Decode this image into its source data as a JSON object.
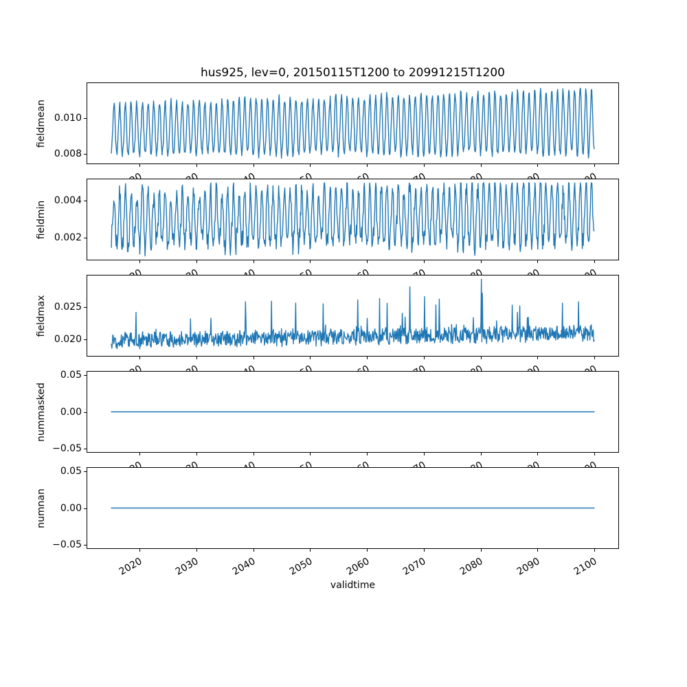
{
  "figure": {
    "background": "#ffffff",
    "text_color": "#000000",
    "spine_color": "#000000"
  },
  "chart_data": {
    "type": "line",
    "title": "hus925, lev=0, 20150115T1200 to 20991215T1200",
    "xlabel": "validtime",
    "grid": false,
    "legend": null,
    "line_color": "#1f77b4",
    "x": {
      "start_label": "20150115T1200",
      "end_label": "20991215T1200",
      "start_year": 2015,
      "end_year": 2099,
      "samples_per_year": 12
    },
    "xlim": [
      2010.796,
      2104.204
    ],
    "xticks": [
      2020,
      2030,
      2040,
      2050,
      2060,
      2070,
      2080,
      2090,
      2100
    ],
    "xtick_labels": [
      "2020",
      "2030",
      "2040",
      "2050",
      "2060",
      "2070",
      "2080",
      "2090",
      "2100"
    ],
    "xtick_rotation_deg": 30,
    "subplots": [
      {
        "name": "fieldmean",
        "ylabel": "fieldmean",
        "ylim": [
          0.00748,
          0.01194
        ],
        "yticks": [
          {
            "v": 0.01,
            "label": "0.010"
          },
          {
            "v": 0.008,
            "label": "0.008"
          }
        ],
        "series": {
          "type": "seasonal",
          "seed": 42,
          "mean0": 0.00932,
          "mean_trend": 0.0004,
          "amp0": 0.00138,
          "amp_trend": 0.00038,
          "amp_jitter": 0.05,
          "harm2": 0.0001,
          "noise": 0.00022,
          "clamp": [
            0.00768,
            0.01174
          ]
        }
      },
      {
        "name": "fieldmin",
        "ylabel": "fieldmin",
        "ylim": [
          0.00084,
          0.00514
        ],
        "yticks": [
          {
            "v": 0.004,
            "label": "0.004"
          },
          {
            "v": 0.002,
            "label": "0.002"
          }
        ],
        "series": {
          "type": "seasonal",
          "seed": 7,
          "mean0": 0.00285,
          "mean_trend": 0.0004,
          "amp0": 0.00135,
          "amp_trend": 0.0002,
          "amp_jitter": 0.18,
          "harm2": 0.0002,
          "noise": 0.00055,
          "clamp": [
            0.00104,
            0.00495
          ]
        }
      },
      {
        "name": "fieldmax",
        "ylabel": "fieldmax",
        "ylim": [
          0.01752,
          0.02983
        ],
        "yticks": [
          {
            "v": 0.025,
            "label": "0.025"
          },
          {
            "v": 0.02,
            "label": "0.020"
          }
        ],
        "series": {
          "type": "noisy",
          "seed": 13,
          "base0": 0.01985,
          "trend": 0.00115,
          "seasonal": 0.00025,
          "noise": 0.0011,
          "spike_prob": 0.05,
          "spike_scale": 0.005,
          "clamp": [
            0.01808,
            0.02927
          ],
          "spikes": [
            [
              2038,
              7,
              0.0258
            ],
            [
              2043,
              2,
              0.0259
            ],
            [
              2047,
              5,
              0.0256
            ],
            [
              2052,
              3,
              0.0255
            ],
            [
              2058,
              4,
              0.0261
            ],
            [
              2062,
              2,
              0.0263
            ],
            [
              2067,
              6,
              0.0281
            ],
            [
              2070,
              1,
              0.0266
            ],
            [
              2072,
              8,
              0.0262
            ],
            [
              2080,
              1,
              0.02927
            ],
            [
              2080,
              3,
              0.0271
            ],
            [
              2085,
              6,
              0.0253
            ],
            [
              2094,
              4,
              0.0256
            ],
            [
              2097,
              2,
              0.0258
            ]
          ]
        }
      },
      {
        "name": "nummasked",
        "ylabel": "nummasked",
        "ylim": [
          -0.055,
          0.055
        ],
        "yticks": [
          {
            "v": 0.05,
            "label": "0.05"
          },
          {
            "v": 0.0,
            "label": "0.00"
          },
          {
            "v": -0.05,
            "label": "−0.05"
          }
        ],
        "series": {
          "type": "constant",
          "value": 0
        }
      },
      {
        "name": "numnan",
        "ylabel": "numnan",
        "ylim": [
          -0.055,
          0.055
        ],
        "yticks": [
          {
            "v": 0.05,
            "label": "0.05"
          },
          {
            "v": 0.0,
            "label": "0.00"
          },
          {
            "v": -0.05,
            "label": "−0.05"
          }
        ],
        "series": {
          "type": "constant",
          "value": 0
        }
      }
    ]
  }
}
